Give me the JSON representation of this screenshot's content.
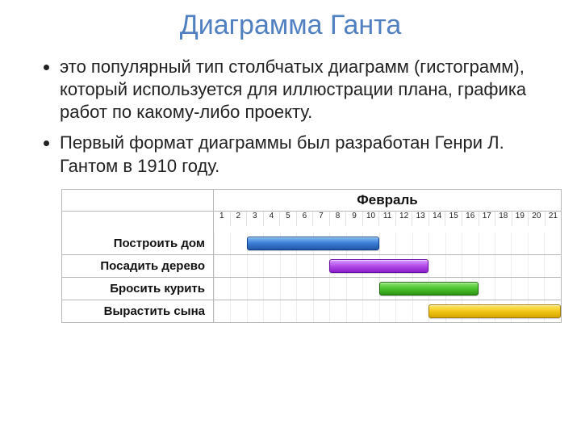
{
  "title": "Диаграмма Ганта",
  "bullets": [
    "это популярный тип столбчатых диаграмм (гистограмм), который используется для иллюстрации плана, графика работ по какому-либо проекту.",
    "Первый формат диаграммы был разработан Генри Л. Гантом в 1910 году."
  ],
  "gantt": {
    "type": "gantt",
    "month_label": "Февраль",
    "day_count": 21,
    "days": [
      "1",
      "2",
      "3",
      "4",
      "5",
      "6",
      "7",
      "8",
      "9",
      "10",
      "11",
      "12",
      "13",
      "14",
      "15",
      "16",
      "17",
      "18",
      "19",
      "20",
      "21"
    ],
    "border_color": "#b8b8b8",
    "grid_color": "#e2e2e2",
    "tasks": [
      {
        "label": "Построить дом",
        "start": 3,
        "end": 10,
        "fill": "linear-gradient(to bottom, #7db8f5 0%, #3a7cd4 50%, #2157a8 100%)",
        "border": "#0d3f8a"
      },
      {
        "label": "Посадить дерево",
        "start": 8,
        "end": 13,
        "fill": "linear-gradient(to bottom, #d99cff 0%, #b24be8 50%, #8a1fc9 100%)",
        "border": "#6a0fa5"
      },
      {
        "label": "Бросить курить",
        "start": 11,
        "end": 16,
        "fill": "linear-gradient(to bottom, #8de66e 0%, #4bc22e 50%, #2d9412 100%)",
        "border": "#1d6b0a"
      },
      {
        "label": "Вырастить сына",
        "start": 14,
        "end": 21,
        "fill": "linear-gradient(to bottom, #ffe86a 0%, #f2c718 50%, #d6a600 100%)",
        "border": "#a37d00"
      }
    ]
  }
}
